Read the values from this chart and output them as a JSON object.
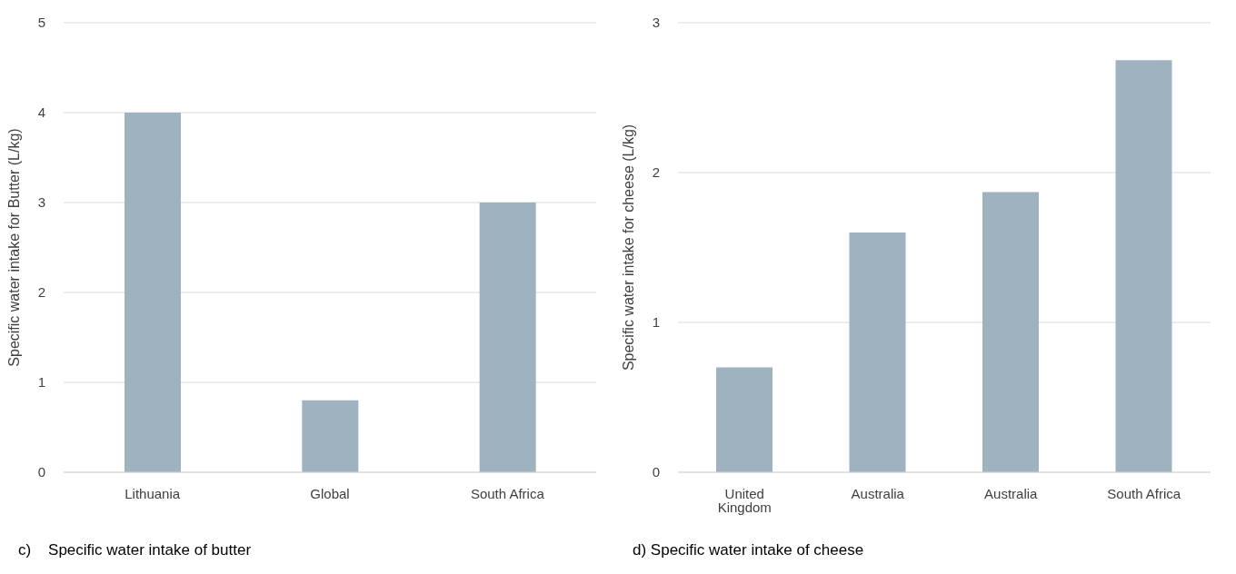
{
  "chart_data": [
    {
      "type": "bar",
      "ylabel": "Specific water intake for Butter (L/kg)",
      "categories": [
        "Lithuania",
        "Global",
        "South Africa"
      ],
      "values": [
        4,
        0.8,
        3
      ],
      "color": "#9eb3bf",
      "ylim": [
        0,
        5
      ],
      "yticks": [
        0,
        1,
        2,
        3,
        4,
        5
      ],
      "grid": "y",
      "legend": false,
      "annotations": [
        "c)    Specific water intake of butter"
      ]
    },
    {
      "type": "bar",
      "ylabel": "Specific water intake for cheese (L/kg)",
      "categories": [
        "United Kingdom",
        "Australia",
        "Australia",
        "South Africa"
      ],
      "values": [
        0.7,
        1.6,
        1.87,
        2.75
      ],
      "color": "#9eb3bf",
      "ylim": [
        0,
        3
      ],
      "yticks": [
        0,
        1,
        2,
        3
      ],
      "grid": "y",
      "legend": false,
      "annotations": [
        "d) Specific water intake of cheese"
      ]
    }
  ]
}
